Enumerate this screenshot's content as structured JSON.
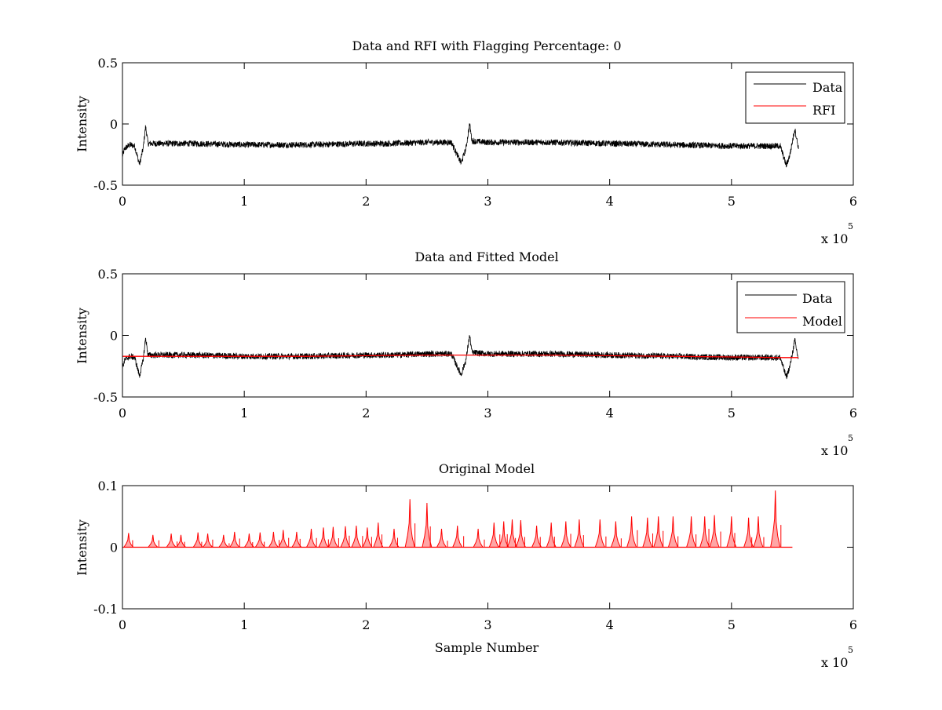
{
  "figure": {
    "background": "#ffffff",
    "data_color": "#000000",
    "model_color": "#ff0000"
  },
  "chart_data": [
    {
      "type": "line",
      "title": "Data and RFI with Flagging Percentage: 0",
      "xlabel": "",
      "ylabel": "Intensity",
      "xlim": [
        0,
        600000
      ],
      "ylim": [
        -0.5,
        0.5
      ],
      "x_ticks": [
        0,
        1,
        2,
        3,
        4,
        5,
        6
      ],
      "x_tick_labels": [
        "0",
        "1",
        "2",
        "3",
        "4",
        "5",
        "6"
      ],
      "y_ticks": [
        -0.5,
        0,
        0.5
      ],
      "y_tick_labels": [
        "-0.5",
        "0",
        "0.5"
      ],
      "x_multiplier_label": "x 10",
      "x_multiplier_exp": "5",
      "grid": false,
      "legend": {
        "position": "top-right",
        "entries": [
          {
            "label": "Data",
            "color": "#000000"
          },
          {
            "label": "RFI",
            "color": "#ff0000"
          }
        ]
      },
      "series": [
        {
          "name": "Data",
          "color": "#000000",
          "kind": "noisy",
          "noise_amplitude": 0.025,
          "x": [
            0,
            2000,
            6000,
            10000,
            14000,
            17000,
            19000,
            21000,
            30000,
            60000,
            100000,
            150000,
            200000,
            220000,
            250000,
            270000,
            278000,
            282000,
            285000,
            287000,
            300000,
            350000,
            400000,
            450000,
            500000,
            540000,
            545000,
            548000,
            552000,
            555000
          ],
          "y": [
            -0.26,
            -0.2,
            -0.17,
            -0.18,
            -0.33,
            -0.2,
            -0.02,
            -0.16,
            -0.16,
            -0.16,
            -0.17,
            -0.17,
            -0.16,
            -0.16,
            -0.15,
            -0.15,
            -0.32,
            -0.2,
            0.0,
            -0.14,
            -0.15,
            -0.15,
            -0.16,
            -0.17,
            -0.18,
            -0.18,
            -0.34,
            -0.25,
            -0.04,
            -0.2
          ]
        }
      ]
    },
    {
      "type": "line",
      "title": "Data and Fitted Model",
      "xlabel": "",
      "ylabel": "Intensity",
      "xlim": [
        0,
        600000
      ],
      "ylim": [
        -0.5,
        0.5
      ],
      "x_ticks": [
        0,
        1,
        2,
        3,
        4,
        5,
        6
      ],
      "x_tick_labels": [
        "0",
        "1",
        "2",
        "3",
        "4",
        "5",
        "6"
      ],
      "y_ticks": [
        -0.5,
        0,
        0.5
      ],
      "y_tick_labels": [
        "-0.5",
        "0",
        "0.5"
      ],
      "x_multiplier_label": "x 10",
      "x_multiplier_exp": "5",
      "grid": false,
      "legend": {
        "position": "top-right",
        "entries": [
          {
            "label": "Data",
            "color": "#000000"
          },
          {
            "label": "Model",
            "color": "#ff0000"
          }
        ]
      },
      "series": [
        {
          "name": "Data",
          "color": "#000000",
          "kind": "noisy",
          "noise_amplitude": 0.025,
          "x": [
            0,
            2000,
            6000,
            10000,
            14000,
            17000,
            19000,
            21000,
            30000,
            60000,
            100000,
            150000,
            200000,
            220000,
            250000,
            270000,
            278000,
            282000,
            285000,
            287000,
            300000,
            350000,
            400000,
            450000,
            500000,
            540000,
            545000,
            548000,
            552000,
            555000
          ],
          "y": [
            -0.26,
            -0.2,
            -0.17,
            -0.18,
            -0.33,
            -0.2,
            -0.02,
            -0.16,
            -0.16,
            -0.16,
            -0.17,
            -0.17,
            -0.16,
            -0.16,
            -0.15,
            -0.15,
            -0.32,
            -0.2,
            0.0,
            -0.14,
            -0.15,
            -0.15,
            -0.16,
            -0.17,
            -0.18,
            -0.18,
            -0.34,
            -0.25,
            -0.04,
            -0.2
          ]
        },
        {
          "name": "Model",
          "color": "#ff0000",
          "kind": "smooth",
          "x": [
            0,
            30000,
            60000,
            100000,
            150000,
            200000,
            250000,
            285000,
            300000,
            350000,
            400000,
            450000,
            500000,
            540000,
            555000
          ],
          "y": [
            -0.17,
            -0.17,
            -0.17,
            -0.17,
            -0.17,
            -0.165,
            -0.16,
            -0.16,
            -0.16,
            -0.16,
            -0.165,
            -0.17,
            -0.175,
            -0.18,
            -0.18
          ]
        }
      ]
    },
    {
      "type": "line",
      "title": "Original Model",
      "xlabel": "Sample Number",
      "ylabel": "Intensity",
      "xlim": [
        0,
        600000
      ],
      "ylim": [
        -0.1,
        0.1
      ],
      "x_ticks": [
        0,
        1,
        2,
        3,
        4,
        5,
        6
      ],
      "x_tick_labels": [
        "0",
        "1",
        "2",
        "3",
        "4",
        "5",
        "6"
      ],
      "y_ticks": [
        -0.1,
        0,
        0.1
      ],
      "y_tick_labels": [
        "-0.1",
        "0",
        "0.1"
      ],
      "x_multiplier_label": "x 10",
      "x_multiplier_exp": "5",
      "grid": false,
      "series": [
        {
          "name": "",
          "color": "#ff0000",
          "kind": "spikes",
          "x_end": 550000,
          "spikes": [
            {
              "x": 5000,
              "h": 0.023
            },
            {
              "x": 25000,
              "h": 0.02
            },
            {
              "x": 40000,
              "h": 0.022
            },
            {
              "x": 48000,
              "h": 0.02
            },
            {
              "x": 62000,
              "h": 0.024
            },
            {
              "x": 70000,
              "h": 0.022
            },
            {
              "x": 83000,
              "h": 0.02
            },
            {
              "x": 92000,
              "h": 0.025
            },
            {
              "x": 104000,
              "h": 0.022
            },
            {
              "x": 113000,
              "h": 0.024
            },
            {
              "x": 124000,
              "h": 0.025
            },
            {
              "x": 132000,
              "h": 0.028
            },
            {
              "x": 143000,
              "h": 0.025
            },
            {
              "x": 155000,
              "h": 0.03
            },
            {
              "x": 165000,
              "h": 0.032
            },
            {
              "x": 173000,
              "h": 0.033
            },
            {
              "x": 183000,
              "h": 0.034
            },
            {
              "x": 192000,
              "h": 0.035
            },
            {
              "x": 201000,
              "h": 0.032
            },
            {
              "x": 210000,
              "h": 0.04
            },
            {
              "x": 223000,
              "h": 0.03
            },
            {
              "x": 236000,
              "h": 0.078
            },
            {
              "x": 250000,
              "h": 0.072
            },
            {
              "x": 262000,
              "h": 0.03
            },
            {
              "x": 275000,
              "h": 0.035
            },
            {
              "x": 292000,
              "h": 0.03
            },
            {
              "x": 305000,
              "h": 0.04
            },
            {
              "x": 313000,
              "h": 0.042
            },
            {
              "x": 320000,
              "h": 0.045
            },
            {
              "x": 327000,
              "h": 0.044
            },
            {
              "x": 340000,
              "h": 0.035
            },
            {
              "x": 352000,
              "h": 0.04
            },
            {
              "x": 364000,
              "h": 0.042
            },
            {
              "x": 375000,
              "h": 0.045
            },
            {
              "x": 392000,
              "h": 0.045
            },
            {
              "x": 405000,
              "h": 0.042
            },
            {
              "x": 418000,
              "h": 0.05
            },
            {
              "x": 431000,
              "h": 0.048
            },
            {
              "x": 440000,
              "h": 0.05
            },
            {
              "x": 452000,
              "h": 0.05
            },
            {
              "x": 467000,
              "h": 0.05
            },
            {
              "x": 478000,
              "h": 0.05
            },
            {
              "x": 486000,
              "h": 0.052
            },
            {
              "x": 500000,
              "h": 0.05
            },
            {
              "x": 514000,
              "h": 0.048
            },
            {
              "x": 522000,
              "h": 0.05
            },
            {
              "x": 536000,
              "h": 0.092
            }
          ]
        }
      ]
    }
  ]
}
